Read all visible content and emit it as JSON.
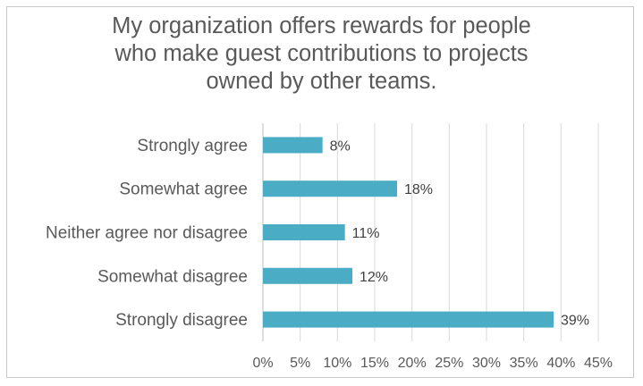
{
  "chart_data": {
    "type": "bar",
    "orientation": "horizontal",
    "title": "My organization offers rewards for people\nwho make guest contributions to projects\nowned by other teams.",
    "categories": [
      "Strongly agree",
      "Somewhat agree",
      "Neither agree nor disagree",
      "Somewhat disagree",
      "Strongly disagree"
    ],
    "values": [
      8,
      18,
      11,
      12,
      39
    ],
    "data_labels": [
      "8%",
      "18%",
      "11%",
      "12%",
      "39%"
    ],
    "x_ticks": [
      "0%",
      "5%",
      "10%",
      "15%",
      "20%",
      "25%",
      "30%",
      "35%",
      "40%",
      "45%"
    ],
    "xlim": [
      0,
      45
    ],
    "grid": true,
    "legend": "none",
    "bar_color": "#4bacc6",
    "grid_color": "#d9d9d9"
  }
}
